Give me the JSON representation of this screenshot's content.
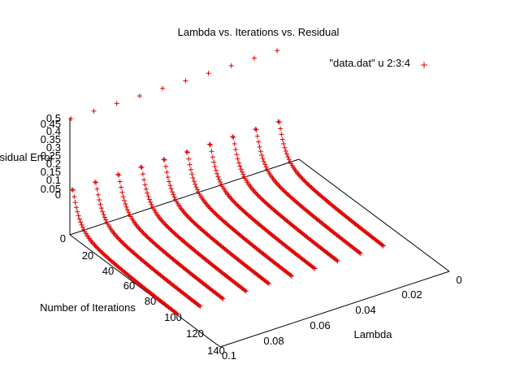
{
  "chart_data": {
    "type": "scatter",
    "title": "Lambda vs. Iterations vs. Residual",
    "legend": {
      "label": "\"data.dat\" u 2:3:4",
      "placement": "top-right"
    },
    "xlabel": "Lambda",
    "ylabel": "Number of Iterations",
    "zlabel": "Residual Error",
    "x_ticks": [
      "0",
      "0.02",
      "0.04",
      "0.06",
      "0.08",
      "0.1"
    ],
    "y_ticks": [
      "20",
      "40",
      "60",
      "80",
      "100",
      "120",
      "140"
    ],
    "z_ticks": [
      "0",
      "0.05",
      "0.1",
      "0.15",
      "0.2",
      "0.25",
      "0.3",
      "0.35",
      "0.4",
      "0.45",
      "0.5"
    ],
    "base_z_tick": "0",
    "xlim": [
      0,
      0.1
    ],
    "ylim": [
      0,
      140
    ],
    "zlim": [
      0,
      0.5
    ],
    "series_color": "#e00000",
    "lambdas": [
      0.01,
      0.02,
      0.03,
      0.04,
      0.05,
      0.06,
      0.07,
      0.08,
      0.09,
      0.1
    ],
    "iterations_range": [
      1,
      100
    ],
    "residual_model": "decaying curve per lambda",
    "grid": false
  }
}
